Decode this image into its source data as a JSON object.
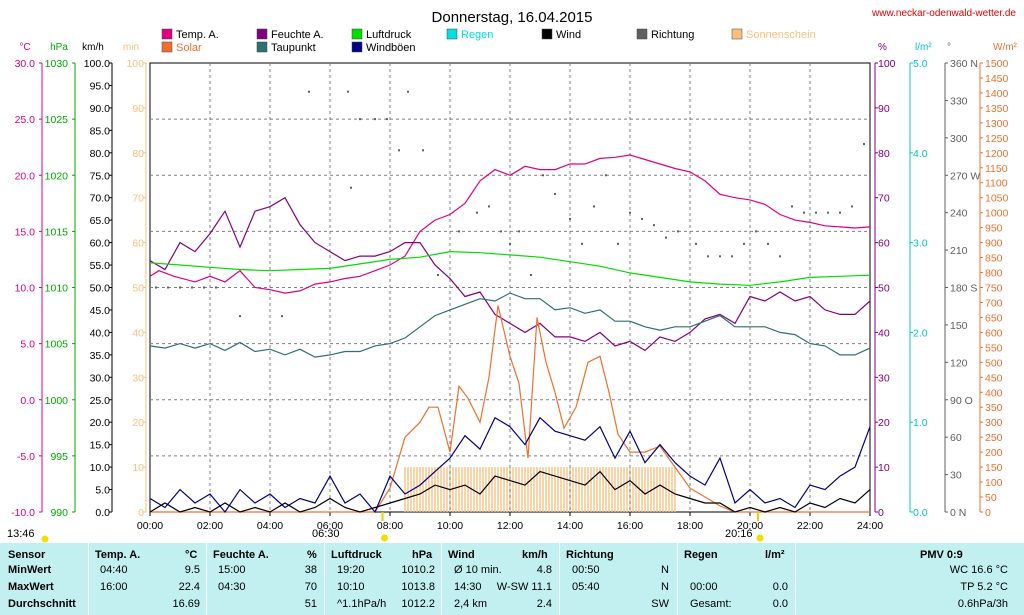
{
  "site_url": "www.neckar-odenwald-wetter.de",
  "sun": {
    "rise": "06:30",
    "set": "20:16",
    "moonrise": "13:46"
  },
  "legend": [
    {
      "label": "Temp. A.",
      "color": "#e0007f"
    },
    {
      "label": "Solar",
      "color": "#f07030"
    },
    {
      "label": "Feuchte A.",
      "color": "#800080"
    },
    {
      "label": "Taupunkt",
      "color": "#2f7070"
    },
    {
      "label": "Luftdruck",
      "color": "#00dd00"
    },
    {
      "label": "Windböen",
      "color": "#000080"
    },
    {
      "label": "Regen",
      "color": "#00e0e0"
    },
    {
      "label": "Wind",
      "color": "#000000"
    },
    {
      "label": "Richtung",
      "color": "#606060"
    },
    {
      "label": "Sonnenschein",
      "color": "#f8c080"
    }
  ],
  "chart_data": {
    "type": "line",
    "title": "Donnerstag, 16.04.2015",
    "x_ticks": [
      "00:00",
      "02:00",
      "04:00",
      "06:00",
      "08:00",
      "10:00",
      "12:00",
      "14:00",
      "16:00",
      "18:00",
      "20:00",
      "22:00",
      "24:00"
    ],
    "axes": {
      "temp": {
        "unit": "°C",
        "color": "#e0007f",
        "range": [
          -10,
          30
        ],
        "ticks": [
          "30.0",
          "25.0",
          "20.0",
          "15.0",
          "10.0",
          "5.0",
          "0.0",
          "-5.0",
          "-10.0"
        ]
      },
      "pressure": {
        "unit": "hPa",
        "color": "#00aa00",
        "range": [
          990,
          1030
        ],
        "ticks": [
          "1030",
          "1025",
          "1020",
          "1015",
          "1010",
          "1005",
          "1000",
          "995",
          "990"
        ]
      },
      "wind": {
        "unit": "km/h",
        "color": "#000000",
        "range": [
          0,
          100
        ],
        "ticks": [
          "100.0",
          "95.0",
          "90.0",
          "85.0",
          "80.0",
          "75.0",
          "70.0",
          "65.0",
          "60.0",
          "55.0",
          "50.0",
          "45.0",
          "40.0",
          "35.0",
          "30.0",
          "25.0",
          "20.0",
          "15.0",
          "10.0",
          "5.0",
          "0.0"
        ]
      },
      "sunshine": {
        "unit": "min",
        "color": "#f8c080",
        "range": [
          0,
          100
        ],
        "ticks": [
          "100",
          "90",
          "80",
          "70",
          "60",
          "50",
          "40",
          "30",
          "20",
          "10",
          "0"
        ]
      },
      "humidity": {
        "unit": "%",
        "color": "#800080",
        "range": [
          0,
          100
        ],
        "ticks": [
          "100",
          "90",
          "80",
          "70",
          "60",
          "50",
          "40",
          "30",
          "20",
          "10",
          "0"
        ]
      },
      "rain": {
        "unit": "l/m²",
        "color": "#00c8c8",
        "range": [
          0,
          5
        ],
        "ticks": [
          "5.0",
          "4.0",
          "3.0",
          "2.0",
          "1.0",
          "0.0"
        ]
      },
      "direction": {
        "unit": "°",
        "color": "#606060",
        "range": [
          0,
          360
        ],
        "ticks": [
          "360 N",
          "330",
          "300",
          "270 W",
          "240",
          "210",
          "180 S",
          "150",
          "120",
          "90 O",
          "60",
          "30",
          "0 N"
        ]
      },
      "solar": {
        "unit": "W/m²",
        "color": "#f07030",
        "range": [
          0,
          1500
        ],
        "ticks": [
          "1500",
          "1450",
          "1400",
          "1350",
          "1300",
          "1250",
          "1200",
          "1150",
          "1100",
          "1050",
          "1000",
          "950",
          "900",
          "850",
          "800",
          "750",
          "700",
          "650",
          "600",
          "550",
          "500",
          "450",
          "400",
          "350",
          "300",
          "250",
          "200",
          "150",
          "100",
          "50",
          "0"
        ]
      }
    },
    "series": [
      {
        "name": "Temp. A.",
        "axis": "temp",
        "color": "#e0007f",
        "x": [
          0,
          0.3,
          0.8,
          1.5,
          2,
          2.5,
          3,
          3.5,
          4,
          4.5,
          5,
          5.5,
          6,
          6.5,
          7,
          7.5,
          8,
          8.5,
          9,
          9.5,
          10,
          10.5,
          11,
          11.5,
          12,
          12.5,
          13,
          13.5,
          14,
          14.5,
          15,
          15.5,
          16,
          16.5,
          17,
          17.5,
          18,
          18.5,
          19,
          19.5,
          20,
          20.5,
          21,
          21.5,
          22,
          22.5,
          23,
          23.5,
          24
        ],
        "y": [
          11,
          11.5,
          11,
          10.5,
          11,
          10.5,
          11.5,
          10,
          9.8,
          9.5,
          9.7,
          10.3,
          10.5,
          10.8,
          11,
          11.5,
          12,
          12.8,
          15,
          16,
          16.5,
          17.5,
          19.5,
          20.5,
          20,
          20.8,
          20.5,
          20.5,
          21,
          21,
          21.5,
          21.6,
          21.8,
          21.4,
          21,
          20.6,
          20.3,
          19.5,
          18.3,
          18,
          17.8,
          17.4,
          16.5,
          16,
          15.8,
          15.5,
          15.4,
          15.3,
          15.4
        ]
      },
      {
        "name": "Feuchte A.",
        "axis": "humidity",
        "color": "#800080",
        "x": [
          0,
          0.5,
          1,
          1.5,
          2,
          2.5,
          3,
          3.5,
          4,
          4.5,
          5,
          5.5,
          6,
          6.5,
          7,
          7.5,
          8,
          8.5,
          9,
          9.5,
          10,
          10.5,
          11,
          11.5,
          12,
          12.5,
          13,
          13.5,
          14,
          14.5,
          15,
          15.5,
          16,
          16.5,
          17,
          17.5,
          18,
          18.5,
          19,
          19.5,
          20,
          20.5,
          21,
          21.5,
          22,
          22.5,
          23,
          23.5,
          24
        ],
        "y": [
          56,
          54,
          60,
          58,
          62,
          67,
          59,
          67,
          68,
          70,
          64,
          60,
          58,
          56,
          57,
          57,
          58,
          60,
          60,
          55,
          52,
          48,
          49,
          44,
          42,
          40,
          42,
          39,
          39,
          38,
          40,
          37,
          38,
          36,
          39,
          38,
          40,
          43,
          44,
          42,
          48,
          47,
          49,
          47,
          48,
          45,
          44,
          44,
          47
        ]
      },
      {
        "name": "Taupunkt",
        "axis": "temp",
        "color": "#2f7070",
        "x": [
          0,
          0.5,
          1,
          1.5,
          2,
          2.5,
          3,
          3.5,
          4,
          4.5,
          5,
          5.5,
          6,
          6.5,
          7,
          7.5,
          8,
          8.5,
          9,
          9.5,
          10,
          10.5,
          11,
          11.5,
          12,
          12.5,
          13,
          13.5,
          14,
          14.5,
          15,
          15.5,
          16,
          16.5,
          17,
          17.5,
          18,
          18.5,
          19,
          19.5,
          20,
          20.5,
          21,
          21.5,
          22,
          22.5,
          23,
          23.5,
          24
        ],
        "y": [
          4.8,
          4.6,
          5,
          4.6,
          5,
          4.4,
          5.1,
          4.3,
          4.5,
          4,
          4.5,
          3.8,
          4,
          4.3,
          4.3,
          4.8,
          5,
          5.5,
          6.5,
          7.5,
          8,
          8.5,
          9,
          8.8,
          9.5,
          9,
          9,
          8,
          8.2,
          7.7,
          8,
          7,
          7,
          6.5,
          6.2,
          6.5,
          6.5,
          7,
          7.5,
          6.5,
          6.5,
          6.5,
          6,
          5.8,
          5,
          4.8,
          4,
          4,
          4.6
        ]
      },
      {
        "name": "Luftdruck",
        "axis": "pressure",
        "color": "#00dd00",
        "x": [
          0,
          1,
          2,
          3,
          4,
          5,
          6,
          7,
          8,
          9,
          10,
          11,
          12,
          13,
          14,
          15,
          16,
          17,
          18,
          19,
          20,
          21,
          22,
          23,
          24
        ],
        "y": [
          1012.2,
          1012.0,
          1011.8,
          1011.6,
          1011.5,
          1011.6,
          1011.7,
          1012.1,
          1012.5,
          1012.7,
          1013.2,
          1013.1,
          1012.9,
          1012.7,
          1012.3,
          1011.9,
          1011.3,
          1010.9,
          1010.5,
          1010.3,
          1010.2,
          1010.5,
          1010.9,
          1011,
          1011.1
        ]
      },
      {
        "name": "Solar",
        "axis": "solar",
        "color": "#f07030",
        "x": [
          0,
          7.5,
          8,
          8.5,
          9,
          9.3,
          9.6,
          10,
          10.3,
          10.6,
          11,
          11.3,
          11.6,
          12,
          12.3,
          12.6,
          12.9,
          13.2,
          13.5,
          13.8,
          14.2,
          14.6,
          15,
          15.3,
          15.6,
          16,
          16.5,
          17,
          17.5,
          18,
          18.5,
          19,
          19.5,
          20,
          24
        ],
        "y": [
          0,
          0,
          80,
          250,
          300,
          350,
          350,
          200,
          420,
          380,
          300,
          450,
          690,
          520,
          430,
          180,
          650,
          500,
          400,
          280,
          350,
          500,
          520,
          400,
          260,
          200,
          200,
          220,
          150,
          80,
          50,
          20,
          0,
          0,
          0
        ]
      },
      {
        "name": "Windböen",
        "axis": "wind",
        "color": "#000080",
        "x": [
          0,
          0.5,
          1,
          1.5,
          2,
          2.5,
          3,
          3.5,
          4,
          4.5,
          5,
          5.5,
          6,
          6.5,
          7,
          7.5,
          8,
          8.5,
          9,
          9.5,
          10,
          10.5,
          11,
          11.5,
          12,
          12.5,
          13,
          13.5,
          14,
          14.5,
          15,
          15.5,
          16,
          16.5,
          17,
          17.5,
          18,
          18.5,
          19,
          19.5,
          20,
          20.5,
          21,
          21.5,
          22,
          22.5,
          23,
          23.5,
          24
        ],
        "y": [
          3,
          1,
          5,
          2,
          4,
          0,
          5,
          2,
          4,
          1,
          3,
          2,
          8,
          2,
          4,
          0,
          8,
          4,
          6,
          9,
          12,
          17,
          14,
          21,
          19,
          15,
          21,
          18,
          17,
          16,
          19,
          12,
          18,
          11,
          15,
          11,
          8,
          6,
          12,
          2,
          5,
          2,
          3,
          1,
          6,
          5,
          8,
          10,
          19
        ]
      },
      {
        "name": "Wind",
        "axis": "wind",
        "color": "#000000",
        "x": [
          0,
          0.5,
          1,
          1.5,
          2,
          2.5,
          3,
          3.5,
          4,
          4.5,
          5,
          5.5,
          6,
          6.5,
          7,
          7.5,
          8,
          8.5,
          9,
          9.5,
          10,
          10.5,
          11,
          11.5,
          12,
          12.5,
          13,
          13.5,
          14,
          14.5,
          15,
          15.5,
          16,
          16.5,
          17,
          17.5,
          18,
          18.5,
          19,
          19.5,
          20,
          20.5,
          21,
          21.5,
          22,
          22.5,
          23,
          23.5,
          24
        ],
        "y": [
          0,
          2,
          0,
          1,
          0,
          2,
          0,
          1,
          0,
          2,
          0,
          1,
          3,
          1,
          0,
          1,
          2,
          3,
          4,
          6,
          5,
          6,
          4,
          8,
          7,
          6,
          9,
          8,
          7,
          6,
          9,
          5,
          7,
          4,
          6,
          4,
          3,
          2,
          2,
          0,
          1,
          0,
          1,
          0,
          2,
          1,
          3,
          2,
          5
        ]
      },
      {
        "name": "Sonnenschein",
        "axis": "sunshine",
        "color": "#f8c080",
        "x": [
          8.5,
          17.5
        ],
        "y": [
          10,
          10
        ]
      }
    ],
    "direction_points": {
      "axis": "direction",
      "color": "#606060",
      "x": [
        0.2,
        0.6,
        1,
        1.4,
        1.8,
        2.2,
        3,
        4.4,
        5.3,
        6.6,
        6.7,
        7,
        7.5,
        7.9,
        8.3,
        8.6,
        9.1,
        9.6,
        10.3,
        10.9,
        11.3,
        11.7,
        12,
        12.3,
        12.7,
        13.1,
        13.5,
        14,
        14.4,
        14.8,
        15.2,
        15.6,
        16,
        16.4,
        16.8,
        17.2,
        17.6,
        18.2,
        18.6,
        19,
        19.4,
        19.8,
        20.2,
        20.6,
        21,
        21.4,
        21.8,
        22.2,
        22.6,
        23,
        23.4,
        23.8
      ],
      "y": [
        180,
        180,
        180,
        180,
        180,
        180,
        157,
        157,
        337,
        337,
        260,
        315,
        315,
        315,
        290,
        337,
        290,
        190,
        225,
        240,
        245,
        225,
        215,
        225,
        190,
        270,
        255,
        235,
        215,
        245,
        270,
        215,
        240,
        235,
        230,
        220,
        225,
        215,
        205,
        205,
        205,
        215,
        225,
        215,
        205,
        245,
        240,
        240,
        240,
        240,
        245,
        295
      ]
    },
    "table": {
      "headers": [
        {
          "label": "Sensor"
        },
        {
          "label": "Temp. A.",
          "unit": "°C"
        },
        {
          "label": "Feuchte A.",
          "unit": "%"
        },
        {
          "label": "Luftdruck",
          "unit": "hPa"
        },
        {
          "label": "Wind",
          "unit": "km/h"
        },
        {
          "label": "Richtung"
        },
        {
          "label": "Regen",
          "unit": "l/m²"
        },
        {
          "label": "PMV 0:9"
        }
      ],
      "rows": [
        {
          "label": "MinWert",
          "temp_time": "04:40",
          "temp_val": "9.5",
          "hum_time": "15:00",
          "hum_val": "38",
          "press_time": "19:20",
          "press_val": "1010.2",
          "wind_time": "Ø 10 min.",
          "wind_val": "4.8",
          "dir_time": "00:50",
          "dir_val": "N",
          "rain_time": "",
          "rain_val": "",
          "extra": "WC 16.6 °C"
        },
        {
          "label": "MaxWert",
          "temp_time": "16:00",
          "temp_val": "22.4",
          "hum_time": "04:30",
          "hum_val": "70",
          "press_time": "10:10",
          "press_val": "1013.8",
          "wind_time": "14:30",
          "wind_val": "W-SW 11.1",
          "dir_time": "05:40",
          "dir_val": "N",
          "rain_time": "00:00",
          "rain_val": "0.0",
          "extra": "TP 5.2 °C"
        },
        {
          "label": "Durchschnitt",
          "temp_time": "",
          "temp_val": "16.69",
          "hum_time": "",
          "hum_val": "51",
          "press_time": "^1.1hPa/h",
          "press_val": "1012.2",
          "wind_time": "2,4 km",
          "wind_val": "2.4",
          "dir_time": "",
          "dir_val": "SW",
          "rain_time": "Gesamt:",
          "rain_val": "0.0",
          "extra": "0.6hPa/3h"
        }
      ]
    }
  }
}
